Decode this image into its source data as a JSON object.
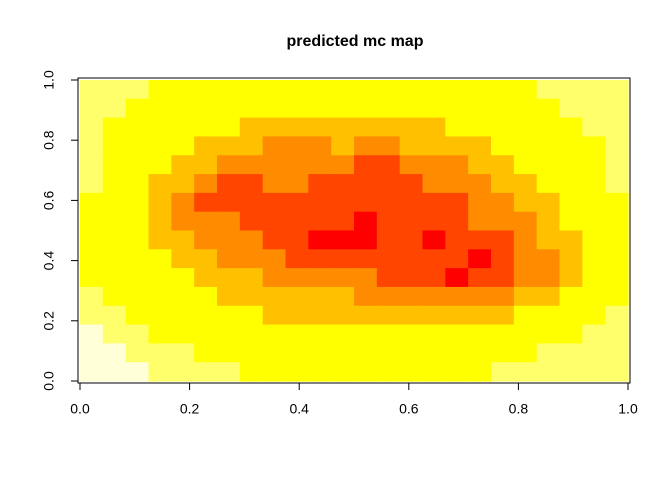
{
  "chart_data": {
    "type": "heatmap",
    "title": "predicted mc map",
    "xlim": [
      0,
      1
    ],
    "ylim": [
      0,
      1
    ],
    "xticks": [
      {
        "value": 0,
        "label": "0.0"
      },
      0.2,
      0.4,
      0.6,
      0.8,
      {
        "value": 1,
        "label": "1.0"
      }
    ],
    "yticks": [
      {
        "value": 0,
        "label": "0.0"
      },
      0.2,
      0.4,
      0.6,
      0.8,
      {
        "value": 1,
        "label": "1.0"
      }
    ],
    "colors": [
      "#ff0000",
      "#ff4500",
      "#ff8c00",
      "#ffc000",
      "#ffff00",
      "#ffff6b",
      "#ffffd8"
    ],
    "z": [
      [
        5,
        5,
        5,
        4,
        4,
        4,
        4,
        4,
        4,
        4,
        4,
        4,
        4,
        4,
        4,
        4,
        4,
        4,
        4,
        4,
        5,
        5,
        5,
        5
      ],
      [
        5,
        5,
        4,
        4,
        4,
        4,
        4,
        4,
        4,
        4,
        4,
        4,
        4,
        4,
        4,
        4,
        4,
        4,
        4,
        4,
        4,
        5,
        5,
        5
      ],
      [
        5,
        4,
        4,
        4,
        4,
        4,
        4,
        3,
        3,
        3,
        3,
        3,
        3,
        3,
        3,
        3,
        4,
        4,
        4,
        4,
        4,
        4,
        5,
        5
      ],
      [
        5,
        4,
        4,
        4,
        4,
        3,
        3,
        3,
        2,
        2,
        2,
        3,
        2,
        2,
        3,
        3,
        3,
        3,
        4,
        4,
        4,
        4,
        4,
        5
      ],
      [
        5,
        4,
        4,
        4,
        3,
        3,
        2,
        2,
        2,
        2,
        2,
        2,
        1,
        1,
        2,
        2,
        2,
        3,
        3,
        4,
        4,
        4,
        4,
        5
      ],
      [
        5,
        4,
        4,
        3,
        3,
        2,
        1,
        1,
        2,
        2,
        1,
        1,
        1,
        1,
        1,
        2,
        2,
        2,
        3,
        3,
        4,
        4,
        4,
        5
      ],
      [
        4,
        4,
        4,
        3,
        2,
        1,
        1,
        1,
        1,
        1,
        1,
        1,
        1,
        1,
        1,
        1,
        1,
        2,
        2,
        3,
        3,
        4,
        4,
        4
      ],
      [
        4,
        4,
        4,
        3,
        2,
        2,
        2,
        1,
        1,
        1,
        1,
        1,
        0,
        1,
        1,
        1,
        1,
        2,
        2,
        2,
        3,
        4,
        4,
        4
      ],
      [
        4,
        4,
        4,
        3,
        3,
        2,
        2,
        2,
        1,
        1,
        0,
        0,
        0,
        1,
        1,
        0,
        1,
        1,
        1,
        2,
        3,
        3,
        4,
        4
      ],
      [
        4,
        4,
        4,
        4,
        3,
        3,
        2,
        2,
        2,
        1,
        1,
        1,
        1,
        1,
        1,
        1,
        1,
        0,
        1,
        2,
        2,
        3,
        4,
        4
      ],
      [
        4,
        4,
        4,
        4,
        4,
        3,
        3,
        3,
        2,
        2,
        2,
        2,
        2,
        1,
        1,
        1,
        0,
        1,
        1,
        2,
        2,
        3,
        4,
        4
      ],
      [
        5,
        4,
        4,
        4,
        4,
        4,
        3,
        3,
        3,
        3,
        3,
        3,
        2,
        2,
        2,
        2,
        2,
        2,
        2,
        3,
        3,
        4,
        4,
        4
      ],
      [
        5,
        5,
        4,
        4,
        4,
        4,
        4,
        4,
        3,
        3,
        3,
        3,
        3,
        3,
        3,
        3,
        3,
        3,
        3,
        4,
        4,
        4,
        4,
        5
      ],
      [
        6,
        5,
        5,
        4,
        4,
        4,
        4,
        4,
        4,
        4,
        4,
        4,
        4,
        4,
        4,
        4,
        4,
        4,
        4,
        4,
        4,
        4,
        5,
        5
      ],
      [
        6,
        6,
        5,
        5,
        5,
        4,
        4,
        4,
        4,
        4,
        4,
        4,
        4,
        4,
        4,
        4,
        4,
        4,
        4,
        4,
        5,
        5,
        5,
        5
      ],
      [
        6,
        6,
        6,
        5,
        5,
        5,
        5,
        4,
        4,
        4,
        4,
        4,
        4,
        4,
        4,
        4,
        4,
        4,
        5,
        5,
        5,
        5,
        5,
        5
      ]
    ]
  }
}
